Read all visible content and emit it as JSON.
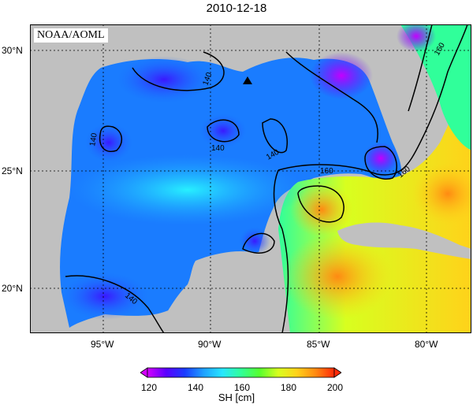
{
  "title": "2010-12-18",
  "credit": "NOAA/AOML",
  "map": {
    "latitude_ticks": [
      {
        "value": 30,
        "label": "30°N"
      },
      {
        "value": 25,
        "label": "25°N"
      },
      {
        "value": 20,
        "label": "20°N"
      }
    ],
    "longitude_ticks": [
      {
        "value": -95,
        "label": "95°W"
      },
      {
        "value": -90,
        "label": "90°W"
      },
      {
        "value": -85,
        "label": "85°W"
      },
      {
        "value": -80,
        "label": "80°W"
      }
    ],
    "extent": {
      "lon_min": -98.2,
      "lon_max": -77.8,
      "lat_min": 18.2,
      "lat_max": 31.0
    },
    "contour_labels": [
      "140",
      "140",
      "140",
      "140",
      "140",
      "160",
      "160",
      "160"
    ],
    "marker": {
      "symbol": "triangle",
      "lon": -88.3,
      "lat": 28.8
    },
    "land_color": "#c0c0c0"
  },
  "colorbar": {
    "title": "SH [cm]",
    "ticks": [
      "120",
      "140",
      "160",
      "180",
      "200"
    ],
    "min": 120,
    "max": 200,
    "colors": [
      "#d400ff",
      "#5a00ff",
      "#1a3cff",
      "#1fa0ff",
      "#27e6ff",
      "#30ff9a",
      "#56ff2f",
      "#d8ff1f",
      "#ffd21a",
      "#ff8a12",
      "#ff2a08"
    ]
  }
}
